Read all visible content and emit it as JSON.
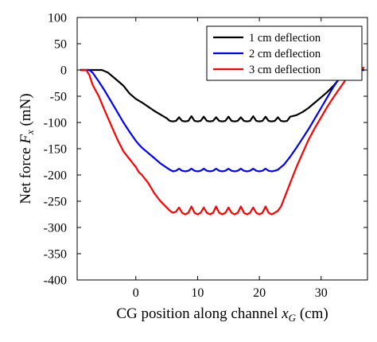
{
  "chart_data": {
    "type": "line",
    "xlabel_prefix": "CG position along channel ",
    "xlabel_symbol": "x",
    "xlabel_subscript": "G",
    "xlabel_suffix": " (cm)",
    "ylabel_prefix": "Net force ",
    "ylabel_symbol": "F",
    "ylabel_subscript": "x",
    "ylabel_suffix": " (mN)",
    "xlim": [
      -9.5,
      37.5
    ],
    "ylim": [
      -400,
      100
    ],
    "x_ticks": [
      0,
      10,
      20,
      30
    ],
    "x_tick_labels": [
      "0",
      "10",
      "20",
      "30"
    ],
    "y_ticks": [
      100,
      50,
      0,
      -50,
      -100,
      -150,
      -200,
      -250,
      -300,
      -350,
      -400
    ],
    "y_tick_labels": [
      "100",
      "50",
      "0",
      "-50",
      "-100",
      "-150",
      "-200",
      "-250",
      "-300",
      "-350",
      "-400"
    ],
    "grid": false,
    "legend_position": "top-right",
    "series": [
      {
        "name": "1 cm deflection",
        "color": "#000000",
        "x": [
          -9,
          -6.5,
          -5.5,
          -4.5,
          -3.5,
          -2.5,
          -2,
          -1,
          0,
          1,
          2,
          3,
          4,
          5,
          5.5,
          6,
          6.5,
          7,
          7.5,
          8,
          8.5,
          9,
          9.5,
          10,
          10.5,
          11,
          11.5,
          12,
          12.5,
          13,
          13.5,
          14,
          14.5,
          15,
          15.5,
          16,
          16.5,
          17,
          17.5,
          18,
          18.5,
          19,
          19.5,
          20,
          20.5,
          21,
          21.5,
          22,
          22.5,
          23,
          23.5,
          24,
          24.5,
          25,
          26,
          27,
          28,
          29,
          30,
          31,
          32,
          33,
          34,
          35,
          36,
          37
        ],
        "values": [
          0,
          0,
          0,
          -5,
          -15,
          -25,
          -30,
          -45,
          -55,
          -62,
          -70,
          -78,
          -85,
          -92,
          -97,
          -98,
          -97,
          -90,
          -97,
          -98,
          -97,
          -88,
          -97,
          -98,
          -97,
          -89,
          -97,
          -98,
          -97,
          -90,
          -97,
          -98,
          -97,
          -89,
          -97,
          -98,
          -97,
          -90,
          -97,
          -98,
          -97,
          -88,
          -97,
          -98,
          -97,
          -89,
          -97,
          -98,
          -97,
          -90,
          -97,
          -98,
          -97,
          -89,
          -86,
          -80,
          -72,
          -62,
          -52,
          -42,
          -30,
          -16,
          -5,
          0,
          0,
          0
        ]
      },
      {
        "name": "2 cm deflection",
        "color": "#0000ff",
        "x": [
          -9,
          -8,
          -7.5,
          -7,
          -6,
          -5,
          -4,
          -3,
          -2,
          -1,
          0,
          0.5,
          1,
          2,
          3,
          4,
          5,
          5.5,
          6,
          6.5,
          7,
          7.5,
          8,
          8.5,
          9,
          9.5,
          10,
          10.5,
          11,
          11.5,
          12,
          12.5,
          13,
          13.5,
          14,
          14.5,
          15,
          15.5,
          16,
          16.5,
          17,
          17.5,
          18,
          18.5,
          19,
          19.5,
          20,
          20.5,
          21,
          21.5,
          22,
          22.5,
          23,
          24,
          25,
          26,
          27,
          28,
          29,
          30,
          31,
          32,
          33,
          34,
          35,
          36,
          37
        ],
        "values": [
          0,
          0,
          0,
          -5,
          -22,
          -40,
          -60,
          -80,
          -100,
          -118,
          -135,
          -142,
          -148,
          -158,
          -168,
          -178,
          -186,
          -190,
          -193,
          -192,
          -188,
          -192,
          -193,
          -192,
          -188,
          -192,
          -193,
          -192,
          -188,
          -192,
          -193,
          -192,
          -188,
          -192,
          -193,
          -192,
          -188,
          -192,
          -193,
          -192,
          -188,
          -192,
          -193,
          -192,
          -188,
          -192,
          -193,
          -192,
          -188,
          -192,
          -193,
          -192,
          -190,
          -180,
          -165,
          -148,
          -130,
          -112,
          -92,
          -72,
          -52,
          -32,
          -15,
          -3,
          0,
          0,
          0
        ]
      },
      {
        "name": "3 cm deflection",
        "color": "#ff0000",
        "x": [
          -9,
          -8,
          -7.5,
          -7,
          -6,
          -5,
          -4,
          -3,
          -2,
          -1,
          0,
          0.5,
          1,
          2,
          3,
          4,
          5,
          5.5,
          6,
          6.5,
          7,
          7.5,
          8,
          8.5,
          9,
          9.5,
          10,
          10.5,
          11,
          11.5,
          12,
          12.5,
          13,
          13.5,
          14,
          14.5,
          15,
          15.5,
          16,
          16.5,
          17,
          17.5,
          18,
          18.5,
          19,
          19.5,
          20,
          20.5,
          21,
          21.5,
          22,
          22.5,
          23,
          23.5,
          24,
          25,
          26,
          27,
          28,
          29,
          30,
          31,
          32,
          33,
          34,
          35,
          36,
          37
        ],
        "values": [
          0,
          0,
          -10,
          -28,
          -50,
          -78,
          -105,
          -132,
          -155,
          -170,
          -185,
          -195,
          -200,
          -215,
          -235,
          -250,
          -262,
          -268,
          -272,
          -270,
          -262,
          -272,
          -275,
          -272,
          -260,
          -272,
          -275,
          -272,
          -262,
          -272,
          -275,
          -272,
          -260,
          -272,
          -275,
          -272,
          -262,
          -272,
          -275,
          -272,
          -260,
          -272,
          -275,
          -272,
          -262,
          -272,
          -275,
          -272,
          -260,
          -272,
          -275,
          -272,
          -268,
          -260,
          -245,
          -215,
          -185,
          -158,
          -132,
          -110,
          -90,
          -70,
          -52,
          -35,
          -18,
          -5,
          0,
          5
        ]
      }
    ]
  }
}
